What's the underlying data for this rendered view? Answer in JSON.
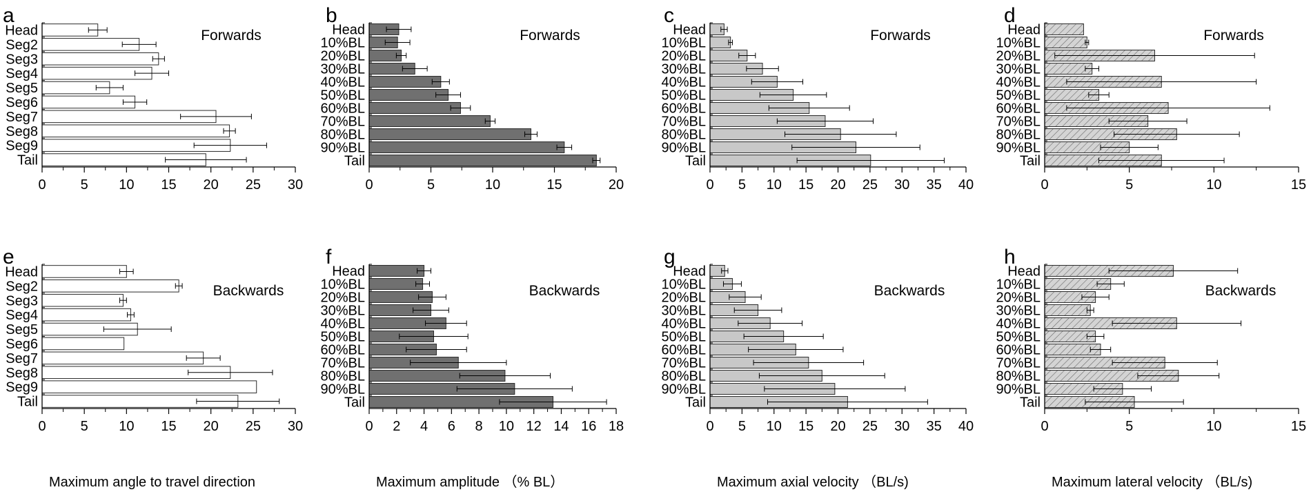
{
  "figure": {
    "x_axis_titles": [
      "Maximum angle to travel direction",
      "Maximum amplitude （% BL）",
      "Maximum axial velocity （BL/s)",
      "Maximum lateral velocity （BL/s)"
    ]
  },
  "chart_data": [
    {
      "id": "a",
      "type": "bar",
      "orientation": "horizontal",
      "direction": "Forwards",
      "categories": [
        "Head",
        "Seg2",
        "Seg3",
        "Seg4",
        "Seg5",
        "Seg6",
        "Seg7",
        "Seg8",
        "Seg9",
        "Tail"
      ],
      "values": [
        6.6,
        11.5,
        13.8,
        13.0,
        8.0,
        11.0,
        20.6,
        22.2,
        22.3,
        19.4
      ],
      "errors": [
        1.1,
        2.0,
        0.7,
        2.0,
        1.6,
        1.4,
        4.2,
        0.7,
        4.3,
        4.8
      ],
      "xlim": [
        0,
        30
      ],
      "xticks": [
        0,
        5,
        10,
        15,
        20,
        25,
        30
      ],
      "xlabel": "",
      "bar_fill": "#ffffff",
      "hatch": false
    },
    {
      "id": "b",
      "type": "bar",
      "orientation": "horizontal",
      "direction": "Forwards",
      "categories": [
        "Head",
        "10%BL",
        "20%BL",
        "30%BL",
        "40%BL",
        "50%BL",
        "60%BL",
        "70%BL",
        "80%BL",
        "90%BL",
        "Tail"
      ],
      "values": [
        2.4,
        2.3,
        2.6,
        3.7,
        5.8,
        6.4,
        7.4,
        9.8,
        13.1,
        15.8,
        18.4
      ],
      "errors": [
        1.0,
        1.0,
        0.4,
        1.0,
        0.7,
        1.0,
        0.8,
        0.4,
        0.5,
        0.6,
        0.3
      ],
      "xlim": [
        0,
        20
      ],
      "xticks": [
        0,
        5,
        10,
        15,
        20
      ],
      "xlabel": "",
      "bar_fill": "#707070",
      "hatch": false
    },
    {
      "id": "c",
      "type": "bar",
      "orientation": "horizontal",
      "direction": "Forwards",
      "categories": [
        "Head",
        "10%BL",
        "20%BL",
        "30%BL",
        "40%BL",
        "50%BL",
        "60%BL",
        "70%BL",
        "80%BL",
        "90%BL",
        "Tail"
      ],
      "values": [
        2.2,
        3.2,
        5.8,
        8.2,
        10.5,
        13.0,
        15.5,
        18.0,
        20.4,
        22.8,
        25.1
      ],
      "errors": [
        0.5,
        0.3,
        1.3,
        2.5,
        4.0,
        5.2,
        6.3,
        7.5,
        8.7,
        10.0,
        11.5
      ],
      "xlim": [
        0,
        40
      ],
      "xticks": [
        0,
        5,
        10,
        15,
        20,
        25,
        30,
        35,
        40
      ],
      "xlabel": "",
      "bar_fill": "#c8c8c8",
      "hatch": false
    },
    {
      "id": "d",
      "type": "bar",
      "orientation": "horizontal",
      "direction": "Forwards",
      "categories": [
        "Head",
        "10%BL",
        "20%BL",
        "30%BL",
        "40%BL",
        "50%BL",
        "60%BL",
        "70%BL",
        "80%BL",
        "90%BL",
        "Tail"
      ],
      "values": [
        2.3,
        2.5,
        6.5,
        2.8,
        6.9,
        3.2,
        7.3,
        6.1,
        7.8,
        5.0,
        6.9
      ],
      "errors": [
        0.0,
        0.1,
        5.9,
        0.4,
        5.6,
        0.6,
        6.0,
        2.3,
        3.7,
        1.7,
        3.7
      ],
      "xlim": [
        0,
        15
      ],
      "xticks": [
        0,
        5,
        10,
        15
      ],
      "xlabel": "",
      "bar_fill": "#d0d0d0",
      "hatch": true
    },
    {
      "id": "e",
      "type": "bar",
      "orientation": "horizontal",
      "direction": "Backwards",
      "categories": [
        "Head",
        "Seg2",
        "Seg3",
        "Seg4",
        "Seg5",
        "Seg6",
        "Seg7",
        "Seg8",
        "Seg9",
        "Tail"
      ],
      "values": [
        10.0,
        16.2,
        9.6,
        10.5,
        11.3,
        9.7,
        19.1,
        22.3,
        25.4,
        23.2
      ],
      "errors": [
        0.8,
        0.4,
        0.4,
        0.4,
        4.0,
        0.0,
        2.0,
        5.0,
        0.0,
        4.9
      ],
      "xlim": [
        0,
        30
      ],
      "xticks": [
        0,
        5,
        10,
        15,
        20,
        25,
        30
      ],
      "xlabel": "Maximum angle to travel direction",
      "bar_fill": "#ffffff",
      "hatch": false
    },
    {
      "id": "f",
      "type": "bar",
      "orientation": "horizontal",
      "direction": "Backwards",
      "categories": [
        "Head",
        "10%BL",
        "20%BL",
        "30%BL",
        "40%BL",
        "50%BL",
        "60%BL",
        "70%BL",
        "80%BL",
        "90%BL",
        "Tail"
      ],
      "values": [
        4.0,
        3.9,
        4.6,
        4.5,
        5.6,
        4.7,
        4.9,
        6.5,
        9.9,
        10.6,
        13.4
      ],
      "errors": [
        0.5,
        0.5,
        1.0,
        1.3,
        1.5,
        2.5,
        2.2,
        3.5,
        3.3,
        4.2,
        3.9
      ],
      "xlim": [
        0,
        18
      ],
      "xticks": [
        0,
        2,
        4,
        6,
        8,
        10,
        12,
        14,
        16,
        18
      ],
      "xlabel": "Maximum amplitude （% BL）",
      "bar_fill": "#707070",
      "hatch": false
    },
    {
      "id": "g",
      "type": "bar",
      "orientation": "horizontal",
      "direction": "Backwards",
      "categories": [
        "Head",
        "10%BL",
        "20%BL",
        "30%BL",
        "40%BL",
        "50%BL",
        "60%BL",
        "70%BL",
        "80%BL",
        "90%BL",
        "Tail"
      ],
      "values": [
        2.3,
        3.5,
        5.5,
        7.5,
        9.4,
        11.5,
        13.4,
        15.4,
        17.5,
        19.5,
        21.5
      ],
      "errors": [
        0.5,
        1.4,
        2.5,
        3.7,
        5.0,
        6.2,
        7.4,
        8.6,
        9.8,
        11.0,
        12.5
      ],
      "xlim": [
        0,
        40
      ],
      "xticks": [
        0,
        5,
        10,
        15,
        20,
        25,
        30,
        35,
        40
      ],
      "xlabel": "Maximum axial velocity （BL/s)",
      "bar_fill": "#c8c8c8",
      "hatch": false
    },
    {
      "id": "h",
      "type": "bar",
      "orientation": "horizontal",
      "direction": "Backwards",
      "categories": [
        "Head",
        "10%BL",
        "20%BL",
        "30%BL",
        "40%BL",
        "50%BL",
        "60%BL",
        "70%BL",
        "80%BL",
        "90%BL",
        "Tail"
      ],
      "values": [
        7.6,
        3.9,
        3.0,
        2.7,
        7.8,
        3.0,
        3.3,
        7.1,
        7.9,
        4.6,
        5.3
      ],
      "errors": [
        3.8,
        0.8,
        0.8,
        0.2,
        3.8,
        0.5,
        0.6,
        3.1,
        2.4,
        1.7,
        2.9
      ],
      "xlim": [
        0,
        15
      ],
      "xticks": [
        0,
        5,
        10,
        15
      ],
      "xlabel": "Maximum lateral velocity （BL/s)",
      "bar_fill": "#d0d0d0",
      "hatch": true
    }
  ]
}
